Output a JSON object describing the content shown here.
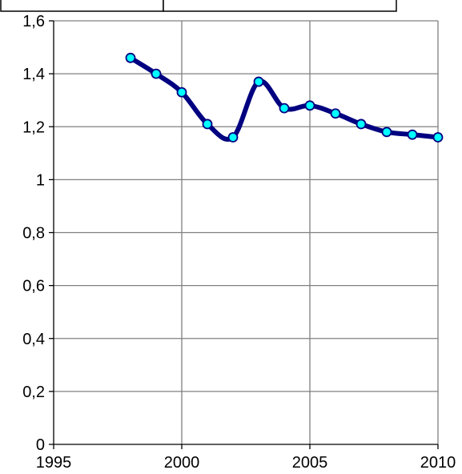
{
  "chart_data": {
    "type": "line",
    "title": "",
    "xlabel": "",
    "ylabel": "",
    "xlim": [
      1995,
      2010
    ],
    "ylim": [
      0,
      1.6
    ],
    "x_ticks": [
      1995,
      2000,
      2005,
      2010
    ],
    "y_ticks": [
      0,
      0.2,
      0.4,
      0.6,
      0.8,
      1,
      1.2,
      1.4,
      1.6
    ],
    "x_tick_labels": [
      "1995",
      "2000",
      "2005",
      "2010"
    ],
    "y_tick_labels": [
      "0",
      "0,2",
      "0,4",
      "0,6",
      "0,8",
      "1",
      "1,2",
      "1,4",
      "1,6"
    ],
    "grid": true,
    "smooth": true,
    "series": [
      {
        "x": [
          1998,
          1999,
          2000,
          2001,
          2002,
          2003,
          2004,
          2005,
          2006,
          2007,
          2008,
          2009,
          2010
        ],
        "values": [
          1.46,
          1.4,
          1.33,
          1.21,
          1.16,
          1.37,
          1.27,
          1.28,
          1.25,
          1.21,
          1.18,
          1.17,
          1.16
        ],
        "line_color": "#000080",
        "marker_fill": "#00ffff",
        "marker_stroke": "#000080"
      }
    ]
  }
}
